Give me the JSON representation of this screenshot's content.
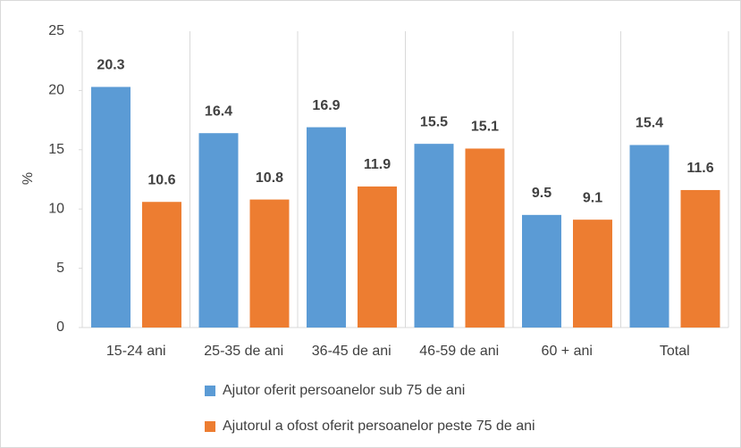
{
  "chart_data": {
    "type": "bar",
    "y_label": "%",
    "categories": [
      "15-24 ani",
      "25-35 de ani",
      "36-45 de ani",
      "46-59 de ani",
      "60 + ani",
      "Total"
    ],
    "series": [
      {
        "name": "Ajutor oferit persoanelor sub 75 de ani",
        "color": "#5b9bd5",
        "values": [
          20.3,
          16.4,
          16.9,
          15.5,
          9.5,
          15.4
        ]
      },
      {
        "name": "Ajutorul a ofost oferit persoanelor peste 75 de ani",
        "color": "#ed7d31",
        "values": [
          10.6,
          10.8,
          11.9,
          15.1,
          9.1,
          11.6
        ]
      }
    ],
    "ylim": [
      0,
      25
    ],
    "yticks": [
      0,
      5,
      10,
      15,
      20,
      25
    ],
    "legend": "bottom"
  }
}
